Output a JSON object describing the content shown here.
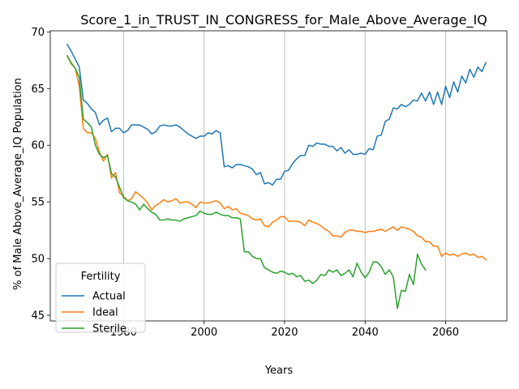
{
  "chart_data": {
    "type": "line",
    "title": "Score_1_in_TRUST_IN_CONGRESS_for_Male_Above_Average_IQ",
    "xlabel": "Years",
    "ylabel": "% of Male Above_Average_IQ Population",
    "xlim": [
      1961.8,
      2075.2
    ],
    "ylim": [
      44.5,
      70.1
    ],
    "xticks": [
      1980,
      2000,
      2020,
      2040,
      2060
    ],
    "yticks": [
      45,
      50,
      55,
      60,
      65,
      70
    ],
    "grid": "x-only",
    "legend": {
      "title": "Fertility",
      "position": "lower-left"
    },
    "series": [
      {
        "name": "Actual",
        "color": "#1f77b4",
        "x": [
          1966,
          1967,
          1968,
          1969,
          1970,
          1971,
          1972,
          1973,
          1974,
          1975,
          1976,
          1977,
          1978,
          1979,
          1980,
          1981,
          1982,
          1983,
          1984,
          1985,
          1986,
          1987,
          1988,
          1989,
          1990,
          1991,
          1992,
          1993,
          1994,
          1995,
          1996,
          1997,
          1998,
          1999,
          2000,
          2001,
          2002,
          2003,
          2004,
          2005,
          2006,
          2007,
          2008,
          2009,
          2010,
          2011,
          2012,
          2013,
          2014,
          2015,
          2016,
          2017,
          2018,
          2019,
          2020,
          2021,
          2022,
          2023,
          2024,
          2025,
          2026,
          2027,
          2028,
          2029,
          2030,
          2031,
          2032,
          2033,
          2034,
          2035,
          2036,
          2037,
          2038,
          2039,
          2040,
          2041,
          2042,
          2043,
          2044,
          2045,
          2046,
          2047,
          2048,
          2049,
          2050,
          2051,
          2052,
          2053,
          2054,
          2055,
          2056,
          2057,
          2058,
          2059,
          2060,
          2061,
          2062,
          2063,
          2064,
          2065,
          2066,
          2067,
          2068,
          2069,
          2070
        ],
        "values": [
          68.9,
          68.3,
          67.6,
          66.9,
          64.0,
          63.7,
          63.2,
          62.9,
          61.8,
          62.2,
          62.4,
          61.2,
          61.5,
          61.5,
          61.1,
          61.3,
          61.8,
          61.8,
          61.8,
          61.6,
          61.4,
          61.0,
          61.2,
          61.7,
          61.8,
          61.7,
          61.7,
          61.8,
          61.6,
          61.3,
          61.0,
          60.8,
          60.6,
          60.8,
          60.8,
          61.1,
          61.0,
          61.3,
          61.1,
          58.1,
          58.2,
          58.0,
          58.3,
          58.3,
          58.2,
          58.1,
          57.9,
          57.4,
          57.6,
          56.6,
          56.7,
          56.5,
          57.0,
          57.0,
          57.7,
          57.8,
          58.4,
          58.8,
          59.1,
          59.1,
          60.0,
          59.9,
          60.2,
          60.1,
          60.1,
          59.9,
          59.9,
          59.5,
          59.8,
          59.3,
          59.6,
          59.2,
          59.2,
          59.3,
          59.2,
          59.7,
          59.6,
          60.8,
          60.9,
          62.1,
          62.3,
          63.3,
          63.2,
          63.6,
          63.4,
          63.6,
          64.0,
          63.9,
          64.6,
          63.9,
          64.7,
          63.6,
          64.7,
          63.6,
          65.2,
          64.2,
          65.6,
          64.7,
          66.1,
          65.5,
          66.7,
          66.0,
          66.9,
          66.5,
          67.3
        ]
      },
      {
        "name": "Ideal",
        "color": "#ff7f0e",
        "x": [
          1966,
          1967,
          1968,
          1969,
          1970,
          1971,
          1972,
          1973,
          1974,
          1975,
          1976,
          1977,
          1978,
          1979,
          1980,
          1981,
          1982,
          1983,
          1984,
          1985,
          1986,
          1987,
          1988,
          1989,
          1990,
          1991,
          1992,
          1993,
          1994,
          1995,
          1996,
          1997,
          1998,
          1999,
          2000,
          2001,
          2002,
          2003,
          2004,
          2005,
          2006,
          2007,
          2008,
          2009,
          2010,
          2011,
          2012,
          2013,
          2014,
          2015,
          2016,
          2017,
          2018,
          2019,
          2020,
          2021,
          2022,
          2023,
          2024,
          2025,
          2026,
          2027,
          2028,
          2029,
          2030,
          2031,
          2032,
          2033,
          2034,
          2035,
          2036,
          2037,
          2038,
          2039,
          2040,
          2041,
          2042,
          2043,
          2044,
          2045,
          2046,
          2047,
          2048,
          2049,
          2050,
          2051,
          2052,
          2053,
          2054,
          2055,
          2056,
          2057,
          2058,
          2059,
          2060,
          2061,
          2062,
          2063,
          2064,
          2065,
          2066,
          2067,
          2068,
          2069,
          2070
        ],
        "values": [
          67.9,
          67.3,
          66.8,
          65.2,
          61.5,
          61.1,
          61.1,
          60.6,
          59.4,
          58.6,
          59.2,
          57.1,
          57.6,
          55.8,
          55.5,
          55.1,
          55.3,
          55.9,
          55.6,
          55.3,
          54.9,
          54.3,
          54.7,
          54.9,
          55.2,
          55.0,
          55.1,
          55.3,
          54.9,
          55.0,
          55.0,
          54.8,
          54.5,
          55.0,
          54.9,
          54.9,
          55.0,
          55.1,
          54.9,
          54.4,
          54.6,
          54.3,
          54.4,
          54.0,
          53.9,
          53.8,
          53.5,
          53.4,
          53.5,
          52.9,
          52.8,
          53.2,
          53.4,
          53.7,
          53.7,
          53.3,
          53.3,
          53.3,
          53.2,
          52.9,
          53.4,
          53.2,
          53.1,
          52.9,
          52.6,
          52.4,
          52.0,
          52.0,
          51.9,
          52.3,
          52.5,
          52.5,
          52.4,
          52.4,
          52.3,
          52.4,
          52.4,
          52.5,
          52.6,
          52.4,
          52.6,
          52.8,
          52.5,
          52.8,
          52.7,
          52.6,
          52.4,
          52.0,
          51.9,
          51.5,
          51.5,
          51.1,
          51.1,
          50.2,
          50.5,
          50.3,
          50.4,
          50.2,
          50.4,
          50.5,
          50.3,
          50.4,
          50.1,
          50.2,
          49.9
        ]
      },
      {
        "name": "Sterile",
        "color": "#2ca02c",
        "x": [
          1966,
          1967,
          1968,
          1969,
          1970,
          1971,
          1972,
          1973,
          1974,
          1975,
          1976,
          1977,
          1978,
          1979,
          1980,
          1981,
          1982,
          1983,
          1984,
          1985,
          1986,
          1987,
          1988,
          1989,
          1990,
          1991,
          1992,
          1993,
          1994,
          1995,
          1996,
          1997,
          1998,
          1999,
          2000,
          2001,
          2002,
          2003,
          2004,
          2005,
          2006,
          2007,
          2008,
          2009,
          2010,
          2011,
          2012,
          2013,
          2014,
          2015,
          2016,
          2017,
          2018,
          2019,
          2020,
          2021,
          2022,
          2023,
          2024,
          2025,
          2026,
          2027,
          2028,
          2029,
          2030,
          2031,
          2032,
          2033,
          2034,
          2035,
          2036,
          2037,
          2038,
          2039,
          2040,
          2041,
          2042,
          2043,
          2044,
          2045,
          2046,
          2047,
          2048,
          2049,
          2050,
          2051,
          2052,
          2053,
          2054,
          2055
        ],
        "values": [
          67.9,
          67.2,
          66.8,
          66.0,
          62.3,
          62.0,
          61.6,
          60.0,
          59.2,
          58.9,
          59.1,
          57.5,
          57.2,
          56.3,
          55.4,
          55.1,
          55.0,
          54.8,
          54.3,
          54.8,
          54.4,
          54.1,
          53.9,
          53.4,
          53.4,
          53.5,
          53.4,
          53.4,
          53.3,
          53.5,
          53.6,
          53.7,
          53.8,
          54.2,
          54.0,
          53.9,
          53.9,
          54.1,
          53.9,
          53.8,
          53.8,
          53.6,
          53.6,
          53.5,
          50.6,
          50.6,
          50.2,
          50.0,
          50.0,
          49.2,
          49.0,
          48.8,
          48.7,
          48.9,
          48.8,
          48.6,
          48.7,
          48.4,
          48.5,
          48.0,
          48.1,
          47.8,
          48.1,
          48.6,
          48.5,
          49.0,
          48.8,
          49.0,
          48.5,
          48.7,
          49.0,
          48.4,
          49.6,
          48.8,
          48.3,
          48.8,
          49.7,
          49.7,
          49.3,
          48.6,
          49.0,
          48.4,
          45.6,
          47.2,
          47.1,
          48.6,
          47.7,
          50.4,
          49.5,
          49.0
        ]
      }
    ]
  }
}
